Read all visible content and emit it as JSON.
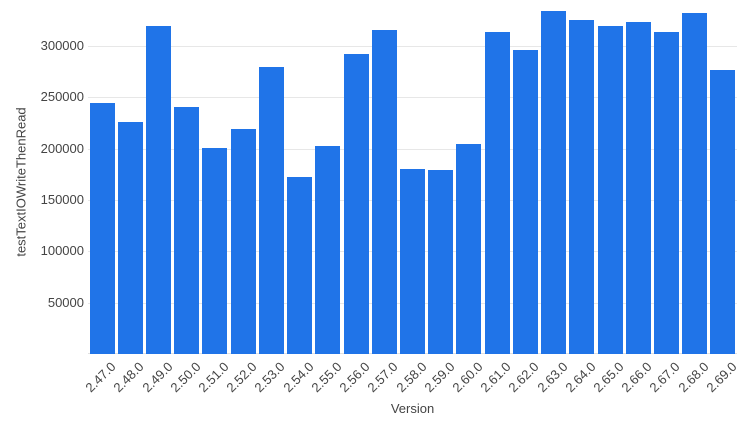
{
  "chart_data": {
    "type": "bar",
    "title": "",
    "xlabel": "Version",
    "ylabel": "testTextIOWriteThenRead",
    "series_name": "testTextIOWriteThenRead",
    "categories": [
      "2.47.0",
      "2.48.0",
      "2.49.0",
      "2.50.0",
      "2.51.0",
      "2.52.0",
      "2.53.0",
      "2.54.0",
      "2.55.0",
      "2.56.0",
      "2.57.0",
      "2.58.0",
      "2.59.0",
      "2.60.0",
      "2.61.0",
      "2.62.0",
      "2.63.0",
      "2.64.0",
      "2.65.0",
      "2.66.0",
      "2.67.0",
      "2.68.0",
      "2.69.0"
    ],
    "values": [
      245000,
      226000,
      320000,
      241000,
      201000,
      219000,
      280000,
      173000,
      203000,
      292000,
      316000,
      180000,
      179000,
      205000,
      314000,
      296000,
      334000,
      326000,
      320000,
      324000,
      314000,
      332000,
      277000
    ],
    "ylim": [
      0,
      345000
    ],
    "yticks": [
      50000,
      100000,
      150000,
      200000,
      250000,
      300000
    ],
    "grid": true,
    "legend": "none"
  },
  "colors": {
    "bar": "#2074e8",
    "gridline": "#e7e7e7",
    "baseline": "#e0e0e0",
    "tick_label": "#444444",
    "axis_title": "#444444",
    "background": "#ffffff"
  }
}
